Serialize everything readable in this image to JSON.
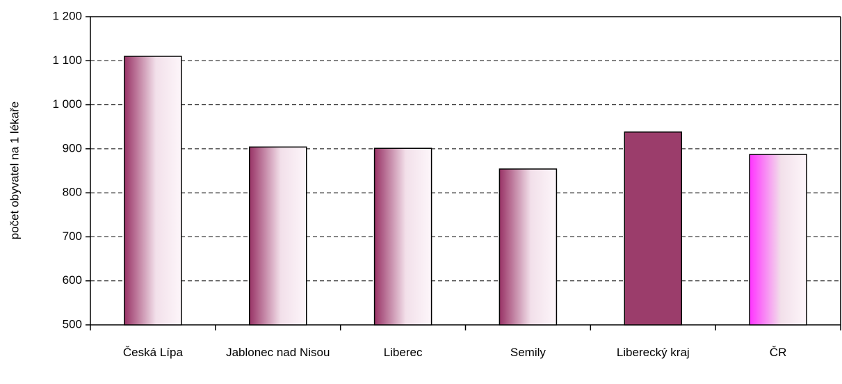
{
  "chart_data": {
    "type": "bar",
    "y_label": "počet obyvatel na 1 lékaře",
    "categories": [
      "Česká Lípa",
      "Jablonec nad Nisou",
      "Liberec",
      "Semily",
      "Liberecký kraj",
      "ČR"
    ],
    "values": [
      1110,
      904,
      901,
      854,
      938,
      887
    ],
    "colors": [
      "#993366",
      "#993366",
      "#993366",
      "#993366",
      "#9b3d6b",
      "#ff33ff"
    ],
    "gradient": [
      true,
      true,
      true,
      true,
      false,
      true
    ],
    "ylim": [
      500,
      1200
    ],
    "yticks": [
      500,
      600,
      700,
      800,
      900,
      {
        "value": 1000,
        "label": "1 000"
      },
      {
        "value": 1100,
        "label": "1 100"
      },
      {
        "value": 1200,
        "label": "1 200"
      }
    ],
    "grid": true
  }
}
